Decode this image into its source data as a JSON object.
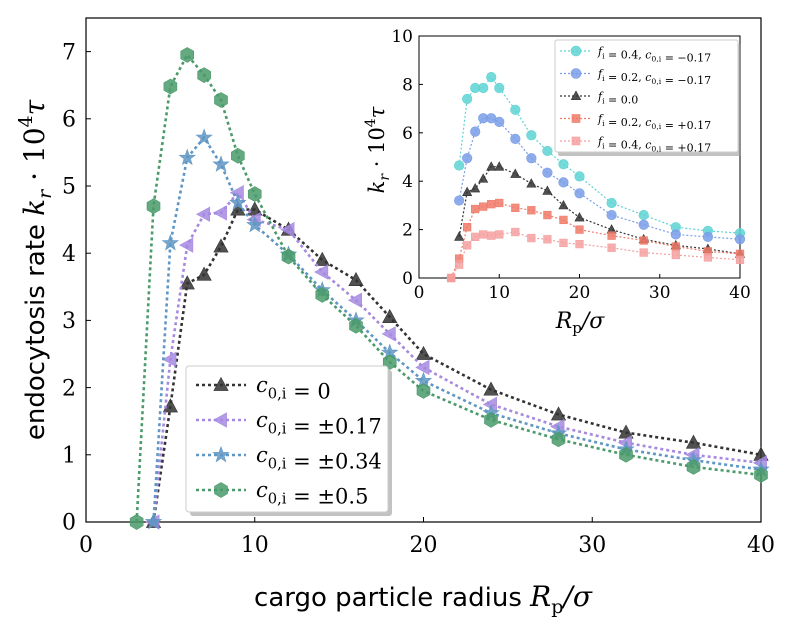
{
  "chart_data": [
    {
      "type": "line",
      "title": "",
      "xlabel": "cargo particle radius",
      "xlabel_math": "R_p/σ",
      "ylabel": "endocytosis rate",
      "ylabel_math": "k_r · 10^4 τ",
      "xlim": [
        0,
        40
      ],
      "ylim": [
        0,
        7.5
      ],
      "xticks": [
        "0",
        "10",
        "20",
        "30",
        "40"
      ],
      "yticks": [
        "0",
        "1",
        "2",
        "3",
        "4",
        "5",
        "6",
        "7"
      ],
      "legend_position": "lower-center",
      "series": [
        {
          "name": "c0,i = 0",
          "color": "#333333",
          "marker": "triangle-up",
          "points": [
            [
              4,
              0
            ],
            [
              5,
              1.72
            ],
            [
              6,
              3.55
            ],
            [
              7,
              3.68
            ],
            [
              8,
              4.1
            ],
            [
              9,
              4.65
            ],
            [
              10,
              4.65
            ],
            [
              12,
              4.35
            ],
            [
              14,
              3.9
            ],
            [
              16,
              3.6
            ],
            [
              18,
              3.05
            ],
            [
              20,
              2.5
            ],
            [
              24,
              1.97
            ],
            [
              28,
              1.6
            ],
            [
              32,
              1.33
            ],
            [
              36,
              1.18
            ],
            [
              40,
              1.0
            ]
          ]
        },
        {
          "name": "c0,i = ±0.17",
          "color": "#a689e0",
          "marker": "triangle-left",
          "points": [
            [
              4,
              0
            ],
            [
              5,
              2.42
            ],
            [
              6,
              4.12
            ],
            [
              7,
              4.58
            ],
            [
              8,
              4.6
            ],
            [
              9,
              4.9
            ],
            [
              10,
              4.5
            ],
            [
              12,
              4.35
            ],
            [
              14,
              3.72
            ],
            [
              16,
              3.3
            ],
            [
              18,
              2.8
            ],
            [
              20,
              2.3
            ],
            [
              24,
              1.75
            ],
            [
              28,
              1.42
            ],
            [
              32,
              1.18
            ],
            [
              36,
              1.0
            ],
            [
              40,
              0.88
            ]
          ]
        },
        {
          "name": "c0,i = ±0.34",
          "color": "#5f96c4",
          "marker": "star",
          "points": [
            [
              4,
              0
            ],
            [
              5,
              4.15
            ],
            [
              6,
              5.42
            ],
            [
              7,
              5.72
            ],
            [
              8,
              5.32
            ],
            [
              9,
              4.75
            ],
            [
              10,
              4.42
            ],
            [
              12,
              3.98
            ],
            [
              14,
              3.45
            ],
            [
              16,
              3.0
            ],
            [
              18,
              2.52
            ],
            [
              20,
              2.1
            ],
            [
              24,
              1.62
            ],
            [
              28,
              1.32
            ],
            [
              32,
              1.08
            ],
            [
              36,
              0.92
            ],
            [
              40,
              0.78
            ]
          ]
        },
        {
          "name": "c0,i = ±0.5",
          "color": "#4a9a6a",
          "marker": "hexagon",
          "points": [
            [
              3,
              0
            ],
            [
              4,
              4.7
            ],
            [
              5,
              6.48
            ],
            [
              6,
              6.95
            ],
            [
              7,
              6.65
            ],
            [
              8,
              6.28
            ],
            [
              9,
              5.45
            ],
            [
              10,
              4.88
            ],
            [
              12,
              3.95
            ],
            [
              14,
              3.38
            ],
            [
              16,
              2.92
            ],
            [
              18,
              2.38
            ],
            [
              20,
              1.95
            ],
            [
              24,
              1.52
            ],
            [
              28,
              1.23
            ],
            [
              32,
              1.0
            ],
            [
              36,
              0.82
            ],
            [
              40,
              0.7
            ]
          ]
        }
      ]
    },
    {
      "type": "line",
      "title": "",
      "xlabel": "",
      "xlabel_math": "R_p/σ",
      "ylabel": "",
      "ylabel_math": "k_r · 10^4 τ",
      "xlim": [
        0,
        40
      ],
      "ylim": [
        0,
        10
      ],
      "xticks": [
        "0",
        "10",
        "20",
        "30",
        "40"
      ],
      "yticks": [
        "0",
        "2",
        "4",
        "6",
        "8",
        "10"
      ],
      "legend_position": "top-right",
      "series": [
        {
          "name": "f_i = 0.4, c_0,i = −0.17",
          "color": "#5fd3d3",
          "marker": "circle",
          "points": [
            [
              5,
              4.65
            ],
            [
              6,
              7.4
            ],
            [
              7,
              7.85
            ],
            [
              8,
              7.85
            ],
            [
              9,
              8.3
            ],
            [
              10,
              7.85
            ],
            [
              12,
              6.95
            ],
            [
              14,
              5.9
            ],
            [
              16,
              5.25
            ],
            [
              18,
              4.7
            ],
            [
              20,
              4.2
            ],
            [
              24,
              3.1
            ],
            [
              28,
              2.6
            ],
            [
              32,
              2.1
            ],
            [
              36,
              1.95
            ],
            [
              40,
              1.85
            ]
          ]
        },
        {
          "name": "f_i = 0.2, c_0,i = −0.17",
          "color": "#7a9ee8",
          "marker": "circle",
          "points": [
            [
              5,
              3.2
            ],
            [
              6,
              4.95
            ],
            [
              7,
              6.05
            ],
            [
              8,
              6.6
            ],
            [
              9,
              6.6
            ],
            [
              10,
              6.45
            ],
            [
              12,
              5.75
            ],
            [
              14,
              4.95
            ],
            [
              16,
              4.35
            ],
            [
              18,
              3.95
            ],
            [
              20,
              3.5
            ],
            [
              24,
              2.6
            ],
            [
              28,
              2.2
            ],
            [
              32,
              1.8
            ],
            [
              36,
              1.7
            ],
            [
              40,
              1.6
            ]
          ]
        },
        {
          "name": "f_i = 0.0",
          "color": "#333333",
          "marker": "triangle-up",
          "points": [
            [
              5,
              1.7
            ],
            [
              6,
              3.55
            ],
            [
              7,
              3.7
            ],
            [
              8,
              4.1
            ],
            [
              9,
              4.6
            ],
            [
              10,
              4.6
            ],
            [
              12,
              4.3
            ],
            [
              14,
              3.9
            ],
            [
              16,
              3.6
            ],
            [
              18,
              3.0
            ],
            [
              20,
              2.5
            ],
            [
              24,
              2.0
            ],
            [
              28,
              1.6
            ],
            [
              32,
              1.35
            ],
            [
              36,
              1.2
            ],
            [
              40,
              1.0
            ]
          ]
        },
        {
          "name": "f_i = 0.2, c_0,i = +0.17",
          "color": "#f07a68",
          "marker": "square",
          "points": [
            [
              4,
              0
            ],
            [
              5,
              0.8
            ],
            [
              6,
              2.1
            ],
            [
              7,
              2.85
            ],
            [
              8,
              2.95
            ],
            [
              9,
              3.05
            ],
            [
              10,
              3.1
            ],
            [
              12,
              2.9
            ],
            [
              14,
              2.8
            ],
            [
              16,
              2.6
            ],
            [
              18,
              2.4
            ],
            [
              20,
              2.0
            ],
            [
              24,
              1.75
            ],
            [
              28,
              1.55
            ],
            [
              32,
              1.3
            ],
            [
              36,
              1.1
            ],
            [
              40,
              1.0
            ]
          ]
        },
        {
          "name": "f_i = 0.4, c_0,i = +0.17",
          "color": "#f5a0a0",
          "marker": "square",
          "points": [
            [
              4,
              0
            ],
            [
              5,
              0.55
            ],
            [
              6,
              1.35
            ],
            [
              7,
              1.7
            ],
            [
              8,
              1.8
            ],
            [
              9,
              1.75
            ],
            [
              10,
              1.8
            ],
            [
              12,
              1.9
            ],
            [
              14,
              1.65
            ],
            [
              16,
              1.6
            ],
            [
              18,
              1.45
            ],
            [
              20,
              1.4
            ],
            [
              24,
              1.25
            ],
            [
              28,
              1.05
            ],
            [
              32,
              0.95
            ],
            [
              36,
              0.85
            ],
            [
              40,
              0.75
            ]
          ]
        }
      ]
    }
  ]
}
